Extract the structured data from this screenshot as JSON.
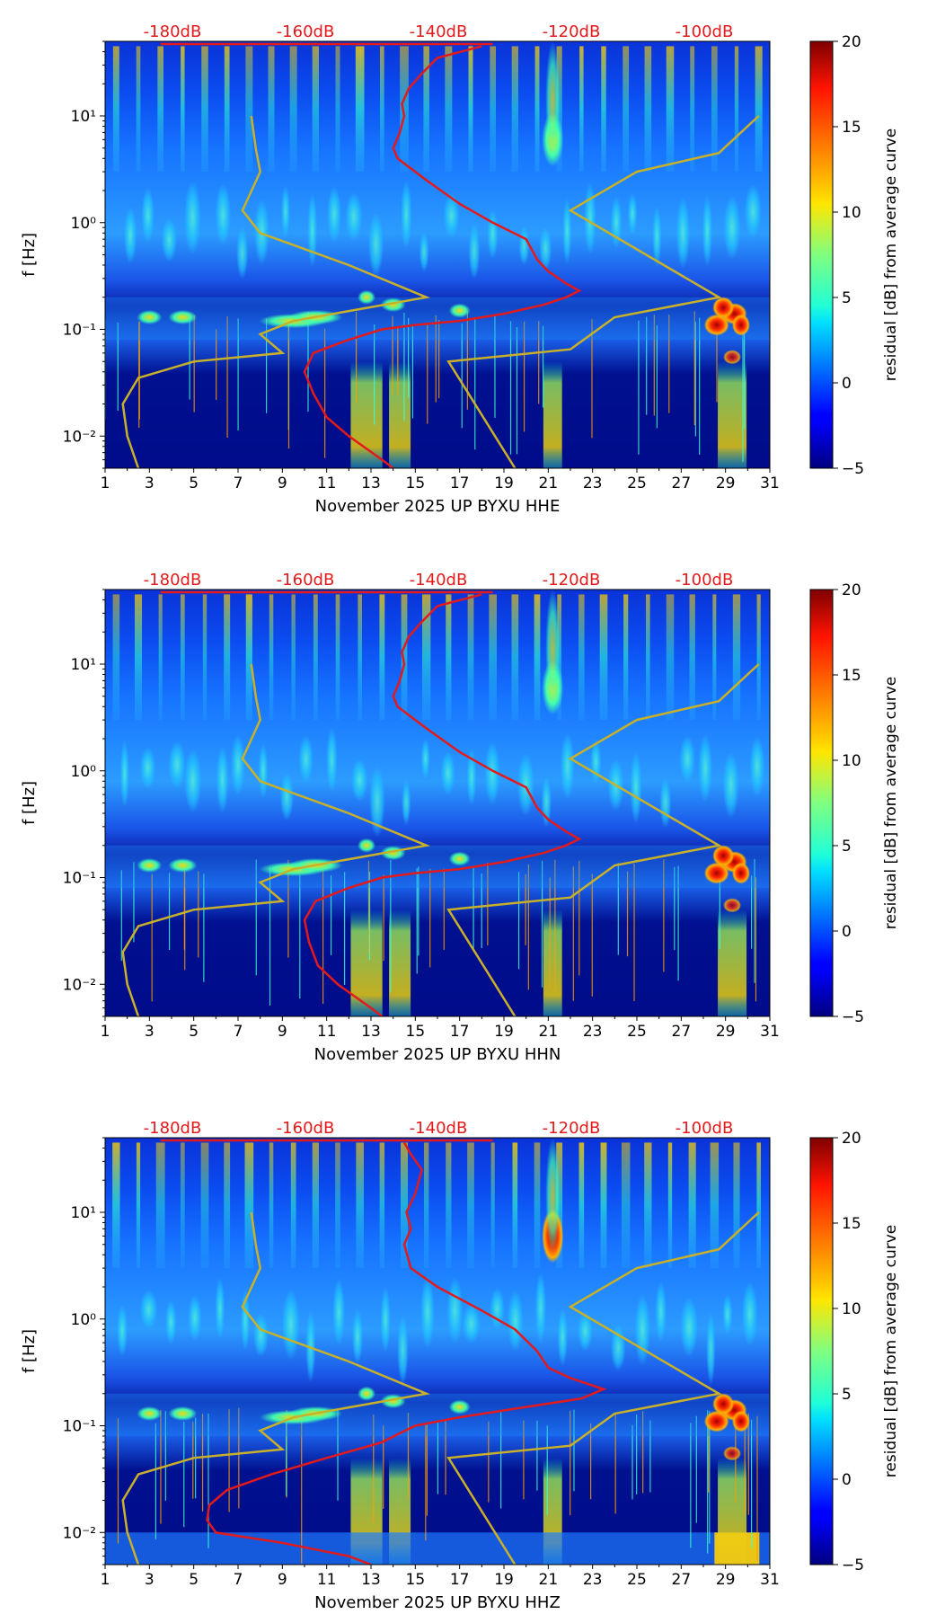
{
  "chart_data": [
    {
      "type": "heatmap",
      "station": "UP BYXU",
      "channel": "HHE",
      "xlabel": "November 2025 UP BYXU  HHE",
      "ylabel": "f [Hz]",
      "colorbar_label": "residual [dB] from average curve",
      "x_ticks": [
        "1",
        "3",
        "5",
        "7",
        "9",
        "11",
        "13",
        "15",
        "17",
        "19",
        "21",
        "23",
        "25",
        "27",
        "29",
        "31"
      ],
      "y_ticks": [
        "10⁻²",
        "10⁻¹",
        "10⁰",
        "10¹"
      ],
      "y_range_hz": [
        0.005,
        50
      ],
      "colorbar_ticks": [
        "20",
        "15",
        "10",
        "5",
        "0",
        "−5"
      ],
      "colorbar_range_db": [
        -5,
        20
      ],
      "db_labels": [
        "-180dB",
        "-160dB",
        "-140dB",
        "-120dB",
        "-100dB"
      ],
      "median_curve_day_f": [
        [
          14,
          0.005
        ],
        [
          13.5,
          0.006
        ],
        [
          12,
          0.01
        ],
        [
          11,
          0.015
        ],
        [
          10.4,
          0.025
        ],
        [
          10,
          0.04
        ],
        [
          10.4,
          0.06
        ],
        [
          12,
          0.08
        ],
        [
          13.5,
          0.1
        ],
        [
          15,
          0.11
        ],
        [
          17,
          0.12
        ],
        [
          19,
          0.14
        ],
        [
          20.8,
          0.17
        ],
        [
          21.8,
          0.2
        ],
        [
          22.4,
          0.23
        ],
        [
          21.8,
          0.27
        ],
        [
          21,
          0.35
        ],
        [
          20.5,
          0.45
        ],
        [
          20,
          0.7
        ],
        [
          18.5,
          1
        ],
        [
          17,
          1.5
        ],
        [
          15.5,
          2.5
        ],
        [
          14.2,
          4
        ],
        [
          14,
          5
        ],
        [
          14.3,
          7
        ],
        [
          14.5,
          10
        ],
        [
          14.4,
          13
        ],
        [
          14.7,
          18
        ],
        [
          15.3,
          25
        ],
        [
          16,
          35
        ],
        [
          18,
          45
        ]
      ],
      "model_curve_day_f": [
        [
          2.5,
          0.005
        ],
        [
          2,
          0.01
        ],
        [
          1.8,
          0.02
        ],
        [
          2.5,
          0.035
        ],
        [
          5,
          0.05
        ],
        [
          9,
          0.06
        ],
        [
          8,
          0.09
        ],
        [
          9.5,
          0.12
        ],
        [
          15.5,
          0.2
        ],
        [
          12,
          0.4
        ],
        [
          8,
          0.8
        ],
        [
          7.2,
          1.3
        ],
        [
          8,
          3
        ],
        [
          7.8,
          5
        ],
        [
          7.6,
          10
        ],
        [
          19.5,
          0.005
        ],
        [
          16.5,
          0.05
        ],
        [
          22,
          0.065
        ],
        [
          24,
          0.13
        ],
        [
          28.7,
          0.2
        ],
        [
          22,
          1.3
        ],
        [
          25,
          3
        ],
        [
          28.7,
          4.5
        ],
        [
          30.5,
          10
        ]
      ]
    },
    {
      "type": "heatmap",
      "station": "UP BYXU",
      "channel": "HHN",
      "xlabel": "November 2025 UP BYXU  HHN",
      "ylabel": "f [Hz]",
      "colorbar_label": "residual [dB] from average curve",
      "x_ticks": [
        "1",
        "3",
        "5",
        "7",
        "9",
        "11",
        "13",
        "15",
        "17",
        "19",
        "21",
        "23",
        "25",
        "27",
        "29",
        "31"
      ],
      "y_ticks": [
        "10⁻²",
        "10⁻¹",
        "10⁰",
        "10¹"
      ],
      "y_range_hz": [
        0.005,
        50
      ],
      "colorbar_ticks": [
        "20",
        "15",
        "10",
        "5",
        "0",
        "−5"
      ],
      "colorbar_range_db": [
        -5,
        20
      ],
      "db_labels": [
        "-180dB",
        "-160dB",
        "-140dB",
        "-120dB",
        "-100dB"
      ],
      "median_curve_day_f": [
        [
          13.5,
          0.005
        ],
        [
          13,
          0.006
        ],
        [
          11.5,
          0.01
        ],
        [
          10.6,
          0.015
        ],
        [
          10.2,
          0.025
        ],
        [
          10,
          0.04
        ],
        [
          10.5,
          0.06
        ],
        [
          12,
          0.08
        ],
        [
          13.5,
          0.1
        ],
        [
          15,
          0.11
        ],
        [
          17,
          0.12
        ],
        [
          19,
          0.14
        ],
        [
          20.8,
          0.17
        ],
        [
          21.8,
          0.2
        ],
        [
          22.4,
          0.23
        ],
        [
          21.8,
          0.27
        ],
        [
          21,
          0.35
        ],
        [
          20.5,
          0.45
        ],
        [
          20,
          0.7
        ],
        [
          18.5,
          1
        ],
        [
          17,
          1.5
        ],
        [
          15.5,
          2.5
        ],
        [
          14.2,
          4
        ],
        [
          14,
          5
        ],
        [
          14.3,
          7
        ],
        [
          14.5,
          10
        ],
        [
          14.4,
          13
        ],
        [
          14.7,
          18
        ],
        [
          15.3,
          25
        ],
        [
          16,
          35
        ],
        [
          18,
          45
        ]
      ],
      "model_curve_day_f": [
        [
          2.5,
          0.005
        ],
        [
          2,
          0.01
        ],
        [
          1.8,
          0.02
        ],
        [
          2.5,
          0.035
        ],
        [
          5,
          0.05
        ],
        [
          9,
          0.06
        ],
        [
          8,
          0.09
        ],
        [
          9.5,
          0.12
        ],
        [
          15.5,
          0.2
        ],
        [
          12,
          0.4
        ],
        [
          8,
          0.8
        ],
        [
          7.2,
          1.3
        ],
        [
          8,
          3
        ],
        [
          7.8,
          5
        ],
        [
          7.6,
          10
        ],
        [
          19.5,
          0.005
        ],
        [
          16.5,
          0.05
        ],
        [
          22,
          0.065
        ],
        [
          24,
          0.13
        ],
        [
          28.7,
          0.2
        ],
        [
          22,
          1.3
        ],
        [
          25,
          3
        ],
        [
          28.7,
          4.5
        ],
        [
          30.5,
          10
        ]
      ]
    },
    {
      "type": "heatmap",
      "station": "UP BYXU",
      "channel": "HHZ",
      "xlabel": "November 2025 UP BYXU  HHZ",
      "ylabel": "f [Hz]",
      "colorbar_label": "residual [dB] from average curve",
      "x_ticks": [
        "1",
        "3",
        "5",
        "7",
        "9",
        "11",
        "13",
        "15",
        "17",
        "19",
        "21",
        "23",
        "25",
        "27",
        "29",
        "31"
      ],
      "y_ticks": [
        "10⁻²",
        "10⁻¹",
        "10⁰",
        "10¹"
      ],
      "y_range_hz": [
        0.005,
        50
      ],
      "colorbar_ticks": [
        "20",
        "15",
        "10",
        "5",
        "0",
        "−5"
      ],
      "colorbar_range_db": [
        -5,
        20
      ],
      "db_labels": [
        "-180dB",
        "-160dB",
        "-140dB",
        "-120dB",
        "-100dB"
      ],
      "median_curve_day_f": [
        [
          13,
          0.005
        ],
        [
          12,
          0.006
        ],
        [
          9,
          0.008
        ],
        [
          6,
          0.01
        ],
        [
          5.6,
          0.013
        ],
        [
          5.7,
          0.018
        ],
        [
          6.5,
          0.025
        ],
        [
          8.5,
          0.035
        ],
        [
          11,
          0.05
        ],
        [
          13.5,
          0.07
        ],
        [
          14.3,
          0.085
        ],
        [
          15,
          0.1
        ],
        [
          17,
          0.12
        ],
        [
          20,
          0.15
        ],
        [
          22.5,
          0.18
        ],
        [
          23.5,
          0.22
        ],
        [
          22,
          0.28
        ],
        [
          21,
          0.35
        ],
        [
          20.5,
          0.5
        ],
        [
          19.5,
          0.8
        ],
        [
          18,
          1.2
        ],
        [
          16,
          2
        ],
        [
          14.8,
          3
        ],
        [
          14.5,
          5
        ],
        [
          14.8,
          7
        ],
        [
          14.6,
          10
        ],
        [
          15,
          15
        ],
        [
          15.3,
          25
        ],
        [
          14.8,
          35
        ],
        [
          14.5,
          45
        ]
      ],
      "model_curve_day_f": [
        [
          2.5,
          0.005
        ],
        [
          2,
          0.01
        ],
        [
          1.8,
          0.02
        ],
        [
          2.5,
          0.035
        ],
        [
          5,
          0.05
        ],
        [
          9,
          0.06
        ],
        [
          8,
          0.09
        ],
        [
          9.5,
          0.12
        ],
        [
          15.5,
          0.2
        ],
        [
          12,
          0.4
        ],
        [
          8,
          0.8
        ],
        [
          7.2,
          1.3
        ],
        [
          8,
          3
        ],
        [
          7.8,
          5
        ],
        [
          7.6,
          10
        ],
        [
          19.5,
          0.005
        ],
        [
          16.5,
          0.05
        ],
        [
          22,
          0.065
        ],
        [
          24,
          0.13
        ],
        [
          28.7,
          0.2
        ],
        [
          22,
          1.3
        ],
        [
          25,
          3
        ],
        [
          28.7,
          4.5
        ],
        [
          30.5,
          10
        ]
      ]
    }
  ],
  "colors": {
    "median_curve": "#e31a1c",
    "model_curve": "#c8b02b",
    "db_label": "#e31a1c",
    "background_low": "#00008f",
    "background_mid": "#0a5fff"
  }
}
